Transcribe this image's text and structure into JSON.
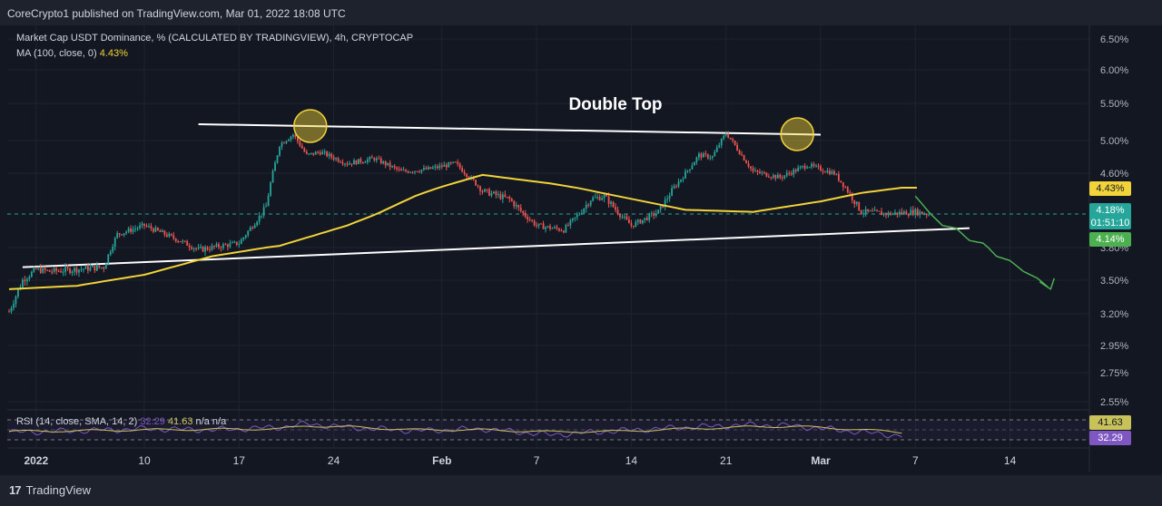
{
  "header": {
    "publisher": "CoreCrypto1 published on TradingView.com, Mar 01, 2022 18:08 UTC"
  },
  "legend": {
    "series_title": "Market Cap USDT Dominance, % (CALCULATED BY TRADINGVIEW), 4h, CRYPTOCAP",
    "ma_label": "MA (100, close, 0)",
    "ma_value": "4.43%",
    "rsi_label": "RSI (14, close, SMA, 14, 2)",
    "rsi_val1": "32.29",
    "rsi_val2": "41.63",
    "rsi_na": "n/a",
    "rsi_na2": "n/a"
  },
  "price_tags": {
    "ma": "4.43%",
    "last": "4.18%",
    "countdown": "01:51:10",
    "target": "4.14%",
    "rsi_sma": "41.63",
    "rsi": "32.29"
  },
  "annotation": {
    "double_top": "Double Top"
  },
  "footer": {
    "brand": "TradingView"
  },
  "colors": {
    "background": "#131722",
    "up": "#26a69a",
    "down": "#ef5350",
    "ma": "#f2d33a",
    "rsi": "#7e57c2",
    "projection": "#4caf50"
  },
  "chart_data": {
    "type": "candlestick",
    "title": "Market Cap USDT Dominance, % (CALCULATED BY TRADINGVIEW), 4h, CRYPTOCAP",
    "timeframe": "4h",
    "y_ticks": [
      "6.50%",
      "6.00%",
      "5.50%",
      "5.00%",
      "4.60%",
      "4.43%",
      "4.18%",
      "3.80%",
      "3.50%",
      "3.20%",
      "2.95%",
      "2.75%",
      "2.55%"
    ],
    "y_tick_values": [
      6.5,
      6.0,
      5.5,
      5.0,
      4.6,
      4.43,
      4.18,
      3.8,
      3.5,
      3.2,
      2.95,
      2.75,
      2.55
    ],
    "x_ticks": [
      "2022",
      "10",
      "17",
      "24",
      "Feb",
      "7",
      "14",
      "21",
      "Mar",
      "7",
      "14"
    ],
    "price_path_days": [
      0,
      1,
      2,
      3,
      5,
      7,
      8,
      10,
      12,
      14,
      17,
      19,
      20,
      21,
      22,
      23,
      25,
      27,
      29,
      31,
      33,
      35,
      37,
      39,
      41,
      43,
      44,
      46,
      48,
      50,
      51,
      52,
      53,
      55,
      57,
      59,
      61,
      63,
      65,
      67,
      68
    ],
    "price_path_values": [
      3.22,
      3.5,
      3.6,
      3.58,
      3.6,
      3.62,
      3.95,
      4.05,
      3.92,
      3.78,
      3.85,
      4.25,
      4.95,
      5.08,
      4.82,
      4.86,
      4.72,
      4.78,
      4.62,
      4.65,
      4.72,
      4.4,
      4.32,
      4.05,
      4.0,
      4.32,
      4.35,
      4.05,
      4.2,
      4.6,
      4.82,
      4.8,
      5.1,
      4.62,
      4.55,
      4.7,
      4.6,
      4.2,
      4.18,
      4.2,
      4.18
    ],
    "ma_days": [
      0,
      5,
      10,
      15,
      20,
      25,
      30,
      35,
      40,
      45,
      50,
      55,
      60,
      63,
      66
    ],
    "ma_values": [
      3.42,
      3.45,
      3.55,
      3.72,
      3.82,
      4.05,
      4.35,
      4.58,
      4.48,
      4.35,
      4.22,
      4.2,
      4.3,
      4.38,
      4.43
    ],
    "resistance_line_days": [
      14,
      60
    ],
    "resistance_line_values": [
      5.22,
      5.08
    ],
    "support_line_days": [
      1,
      71
    ],
    "support_line_values": [
      3.62,
      4.02
    ],
    "double_top_days": [
      22,
      58
    ],
    "projection_days": [
      67,
      68,
      69,
      70,
      71,
      72,
      73,
      74,
      75,
      76,
      77
    ],
    "projection_values": [
      4.35,
      4.2,
      4.05,
      4.02,
      3.88,
      3.85,
      3.72,
      3.68,
      3.58,
      3.52,
      3.42
    ],
    "rsi_days": [
      0,
      5,
      10,
      15,
      20,
      22,
      25,
      30,
      35,
      40,
      45,
      50,
      55,
      58,
      62,
      66
    ],
    "rsi_values": [
      45,
      48,
      52,
      50,
      55,
      62,
      55,
      48,
      52,
      40,
      48,
      55,
      60,
      58,
      48,
      38
    ],
    "rsi_sma_values": [
      47,
      48,
      50,
      51,
      52,
      58,
      56,
      50,
      50,
      46,
      47,
      52,
      56,
      57,
      52,
      45
    ]
  }
}
